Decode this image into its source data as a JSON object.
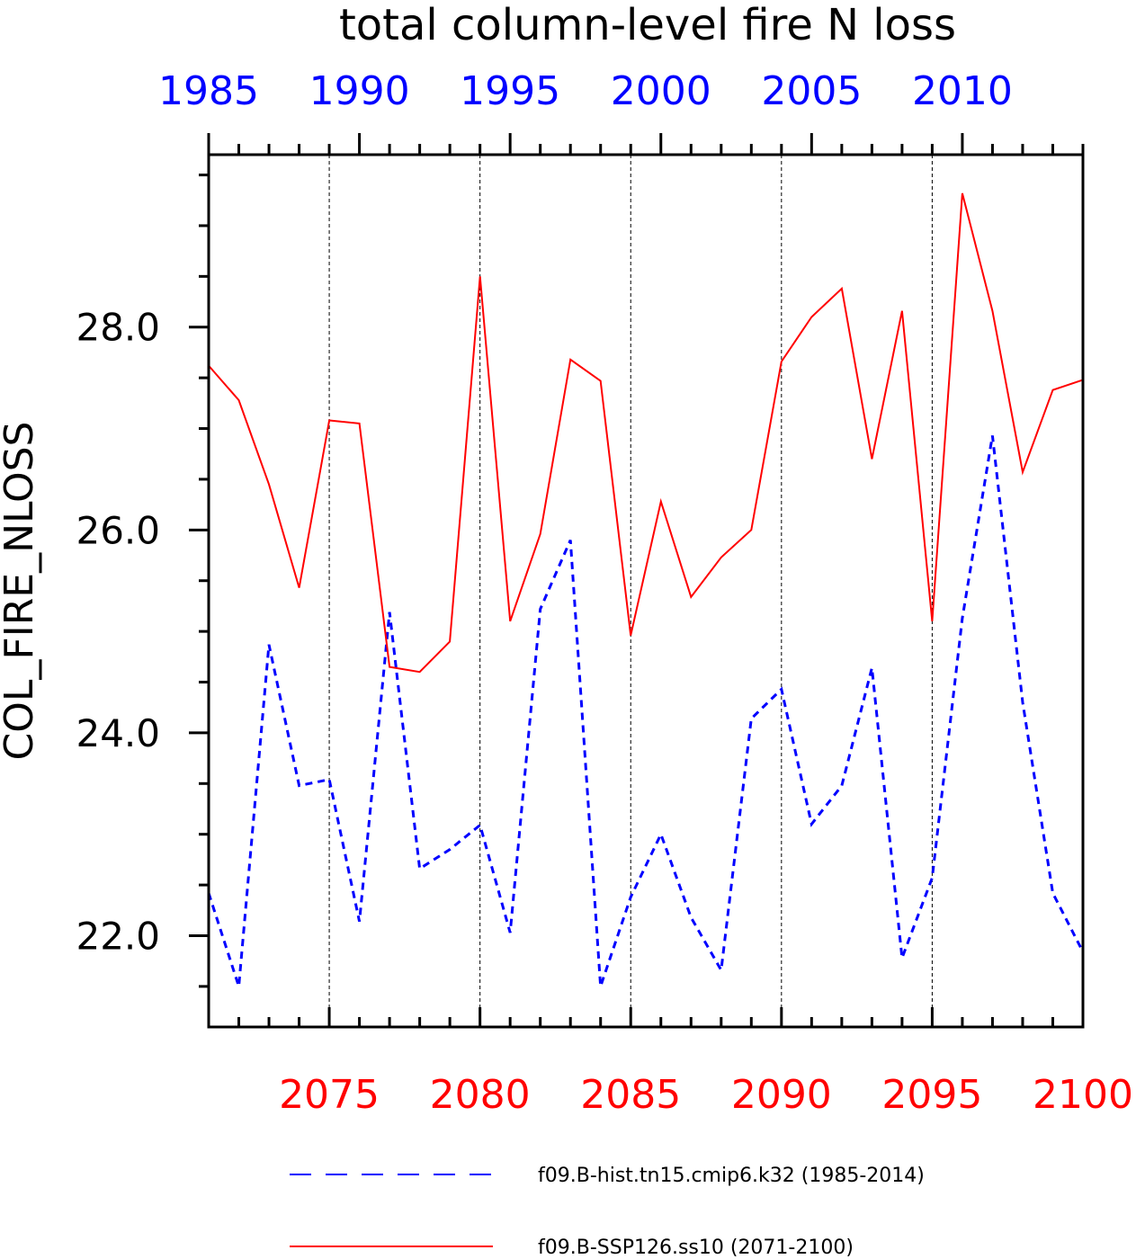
{
  "chart_data": {
    "type": "line",
    "title": "total column-level fire N loss",
    "ylabel": "COL_FIRE_NLOSS",
    "ylim": [
      21.1,
      29.7
    ],
    "y_ticks": [
      22.0,
      24.0,
      26.0,
      28.0
    ],
    "y_tick_labels": [
      "22.0",
      "24.0",
      "26.0",
      "28.0"
    ],
    "bottom_axis": {
      "range": [
        2071,
        2100
      ],
      "ticks": [
        2075,
        2080,
        2085,
        2090,
        2095,
        2100
      ],
      "tick_labels": [
        "2075",
        "2080",
        "2085",
        "2090",
        "2095",
        "2100"
      ]
    },
    "top_axis": {
      "range": [
        1985,
        2014
      ],
      "ticks": [
        1985,
        1990,
        1995,
        2000,
        2005,
        2010
      ],
      "tick_labels": [
        "1985",
        "1990",
        "1995",
        "2000",
        "2005",
        "2010"
      ]
    },
    "grid": "vertical dashed at major bottom ticks",
    "legend_position": "bottom",
    "series": [
      {
        "name": "f09.B-hist.tn15.cmip6.k32 (1985-2014)",
        "axis": "top",
        "color": "#0000ff",
        "style": "dashed",
        "x": [
          1985,
          1986,
          1987,
          1988,
          1989,
          1990,
          1991,
          1992,
          1993,
          1994,
          1995,
          1996,
          1997,
          1998,
          1999,
          2000,
          2001,
          2002,
          2003,
          2004,
          2005,
          2006,
          2007,
          2008,
          2009,
          2010,
          2011,
          2012,
          2013,
          2014
        ],
        "values": [
          22.42,
          21.5,
          24.87,
          23.48,
          23.54,
          22.14,
          25.19,
          22.66,
          22.85,
          23.09,
          22.03,
          25.22,
          25.9,
          21.5,
          22.38,
          23.0,
          22.18,
          21.66,
          24.14,
          24.43,
          23.1,
          23.48,
          24.64,
          21.78,
          22.57,
          25.13,
          26.93,
          24.3,
          22.42,
          21.84
        ]
      },
      {
        "name": "f09.B-SSP126.ss10 (2071-2100)",
        "axis": "bottom",
        "color": "#ff0000",
        "style": "solid",
        "x": [
          2071,
          2072,
          2073,
          2074,
          2075,
          2076,
          2077,
          2078,
          2079,
          2080,
          2081,
          2082,
          2083,
          2084,
          2085,
          2086,
          2087,
          2088,
          2089,
          2090,
          2091,
          2092,
          2093,
          2094,
          2095,
          2096,
          2097,
          2098,
          2099,
          2100
        ],
        "values": [
          27.62,
          27.28,
          26.45,
          25.43,
          27.08,
          27.05,
          24.65,
          24.6,
          24.9,
          28.5,
          25.1,
          25.96,
          27.68,
          27.47,
          24.96,
          26.28,
          25.34,
          25.73,
          26.0,
          27.66,
          28.1,
          28.38,
          26.7,
          28.16,
          25.1,
          29.32,
          28.16,
          26.57,
          27.38,
          27.48
        ]
      }
    ]
  }
}
